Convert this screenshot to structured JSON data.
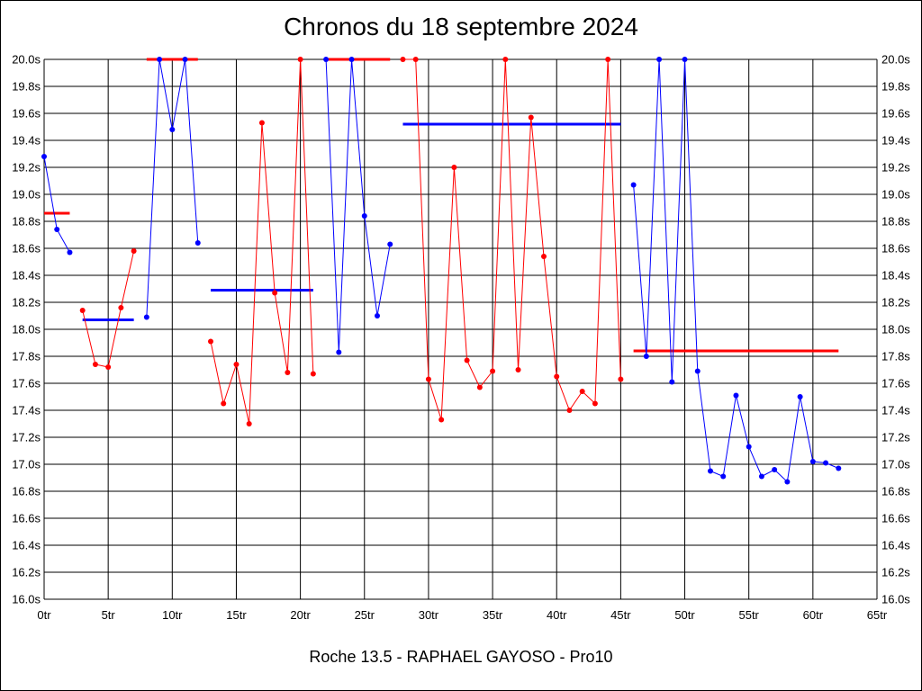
{
  "chart_data": {
    "type": "line",
    "title": "Chronos du 18 septembre 2024",
    "subtitle": "Roche 13.5 - RAPHAEL GAYOSO - Pro10",
    "xlim": [
      0,
      65
    ],
    "ylim": [
      16.0,
      20.0
    ],
    "x_ticks": [
      0,
      5,
      10,
      15,
      20,
      25,
      30,
      35,
      40,
      45,
      50,
      55,
      60,
      65
    ],
    "x_tick_labels": [
      "0tr",
      "5tr",
      "10tr",
      "15tr",
      "20tr",
      "25tr",
      "30tr",
      "35tr",
      "40tr",
      "45tr",
      "50tr",
      "55tr",
      "60tr",
      "65tr"
    ],
    "y_ticks": [
      16.0,
      16.2,
      16.4,
      16.6,
      16.8,
      17.0,
      17.2,
      17.4,
      17.6,
      17.8,
      18.0,
      18.2,
      18.4,
      18.6,
      18.8,
      19.0,
      19.2,
      19.4,
      19.6,
      19.8,
      20.0
    ],
    "y_tick_labels": [
      "16.0s",
      "16.2s",
      "16.4s",
      "16.6s",
      "16.8s",
      "17.0s",
      "17.2s",
      "17.4s",
      "17.6s",
      "17.8s",
      "18.0s",
      "18.2s",
      "18.4s",
      "18.6s",
      "18.8s",
      "19.0s",
      "19.2s",
      "19.4s",
      "19.6s",
      "19.8s",
      "20.0s"
    ],
    "grid": true,
    "series": [
      {
        "color": "#0000ff",
        "points": [
          [
            0,
            19.28
          ],
          [
            1,
            18.74
          ],
          [
            2,
            18.57
          ]
        ]
      },
      {
        "color": "#ff0000",
        "points": [
          [
            3,
            18.14
          ],
          [
            4,
            17.74
          ],
          [
            5,
            17.72
          ],
          [
            6,
            18.16
          ],
          [
            7,
            18.58
          ]
        ]
      },
      {
        "color": "#0000ff",
        "points": [
          [
            8,
            18.09
          ],
          [
            9,
            20.0
          ],
          [
            10,
            19.48
          ],
          [
            11,
            20.0
          ],
          [
            12,
            18.64
          ]
        ]
      },
      {
        "color": "#ff0000",
        "points": [
          [
            13,
            17.91
          ],
          [
            14,
            17.45
          ],
          [
            15,
            17.74
          ],
          [
            16,
            17.3
          ],
          [
            17,
            19.53
          ],
          [
            18,
            18.27
          ],
          [
            19,
            17.68
          ],
          [
            20,
            20.0
          ],
          [
            21,
            17.67
          ]
        ]
      },
      {
        "color": "#0000ff",
        "points": [
          [
            22,
            20.0
          ],
          [
            23,
            17.83
          ],
          [
            24,
            20.0
          ],
          [
            25,
            18.84
          ],
          [
            26,
            18.1
          ],
          [
            27,
            18.63
          ]
        ]
      },
      {
        "color": "#ff0000",
        "points": [
          [
            28,
            20.0
          ],
          [
            29,
            20.0
          ],
          [
            30,
            17.63
          ],
          [
            31,
            17.33
          ],
          [
            32,
            19.2
          ],
          [
            33,
            17.77
          ],
          [
            34,
            17.57
          ],
          [
            35,
            17.69
          ],
          [
            36,
            20.0
          ],
          [
            37,
            17.7
          ],
          [
            38,
            19.57
          ],
          [
            39,
            18.54
          ],
          [
            40,
            17.65
          ],
          [
            41,
            17.4
          ],
          [
            42,
            17.54
          ],
          [
            43,
            17.45
          ],
          [
            44,
            20.0
          ],
          [
            45,
            17.63
          ]
        ]
      },
      {
        "color": "#0000ff",
        "points": [
          [
            46,
            19.07
          ],
          [
            47,
            17.8
          ],
          [
            48,
            20.0
          ],
          [
            49,
            17.61
          ],
          [
            50,
            20.0
          ],
          [
            51,
            17.69
          ],
          [
            52,
            16.95
          ],
          [
            53,
            16.91
          ],
          [
            54,
            17.51
          ],
          [
            55,
            17.13
          ],
          [
            56,
            16.91
          ],
          [
            57,
            16.96
          ],
          [
            58,
            16.87
          ],
          [
            59,
            17.5
          ],
          [
            60,
            17.02
          ],
          [
            61,
            17.01
          ],
          [
            62,
            16.97
          ]
        ]
      }
    ],
    "averages": [
      {
        "color": "#ff0000",
        "x": [
          0,
          2
        ],
        "y": 18.86
      },
      {
        "color": "#0000ff",
        "x": [
          3,
          7
        ],
        "y": 18.07
      },
      {
        "color": "#ff0000",
        "x": [
          8,
          12
        ],
        "y": 20.0
      },
      {
        "color": "#0000ff",
        "x": [
          13,
          21
        ],
        "y": 18.29
      },
      {
        "color": "#ff0000",
        "x": [
          22,
          27
        ],
        "y": 20.0
      },
      {
        "color": "#0000ff",
        "x": [
          28,
          45
        ],
        "y": 19.52
      },
      {
        "color": "#ff0000",
        "x": [
          46,
          62
        ],
        "y": 17.84
      }
    ]
  }
}
